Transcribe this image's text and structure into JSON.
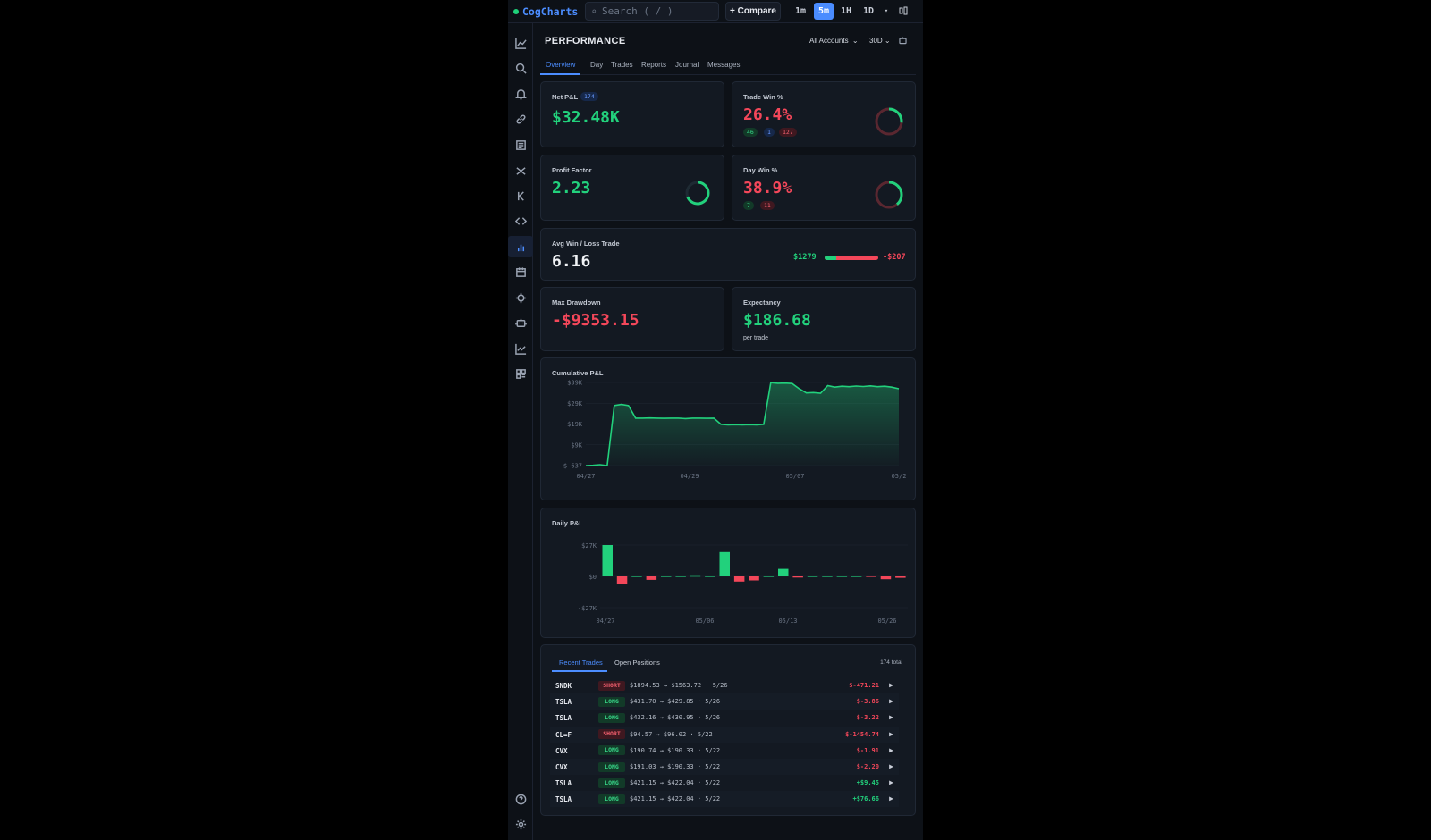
{
  "app": {
    "brand": "CogCharts"
  },
  "topbar": {
    "search_placeholder": "Search ( / )",
    "compare_label": "+ Compare",
    "timeframes": [
      "1m",
      "5m",
      "1H",
      "1D"
    ],
    "active_timeframe": "5m",
    "more": "▾"
  },
  "sidebar": {
    "items": [
      "chart-icon",
      "search-icon",
      "bell-icon",
      "link-icon",
      "news-icon",
      "scissors-icon",
      "k-icon",
      "code-icon",
      "bar-chart-icon",
      "calendar-icon",
      "target-icon",
      "robot-icon",
      "line-chart-icon",
      "grid-icon"
    ],
    "active": "bar-chart-icon",
    "bottom": [
      "help-icon",
      "settings-icon"
    ]
  },
  "page": {
    "title": "PERFORMANCE",
    "account_select": "All Accounts",
    "range_select": "30D",
    "tabs": [
      "Overview",
      "Day",
      "Trades",
      "Reports",
      "Journal",
      "Messages"
    ],
    "active_tab": "Overview"
  },
  "metrics": {
    "net_pnl": {
      "label": "Net P&L",
      "badge": "174",
      "value": "$32.48K"
    },
    "trade_win": {
      "label": "Trade Win %",
      "value": "26.4%",
      "wins": "46",
      "even": "1",
      "losses": "127",
      "fraction": 0.264
    },
    "profit_factor": {
      "label": "Profit Factor",
      "value": "2.23",
      "fraction": 0.69
    },
    "day_win": {
      "label": "Day Win %",
      "value": "38.9%",
      "wins": "7",
      "losses": "11",
      "fraction": 0.389
    },
    "avg_win_loss": {
      "label": "Avg Win / Loss Trade",
      "value": "6.16",
      "avg_win": "$1279",
      "avg_loss": "-$207",
      "win_fraction": 0.22
    },
    "max_drawdown": {
      "label": "Max Drawdown",
      "value": "-$9353.15"
    },
    "expectancy": {
      "label": "Expectancy",
      "value": "$186.68",
      "sub": "per trade"
    }
  },
  "colors": {
    "green": "#22d17c",
    "red": "#f4475a",
    "accent": "#4a8cff"
  },
  "chart_data": [
    {
      "type": "area",
      "title": "Cumulative P&L",
      "x_ticks": [
        "04/27",
        "04/29",
        "05/07",
        "05/2"
      ],
      "y_ticks": [
        "$39K",
        "$29K",
        "$19K",
        "$9K",
        "$-637"
      ],
      "ylim": [
        -637,
        39000
      ],
      "series": [
        {
          "values": [
            -637,
            -500,
            -200,
            -637,
            28000,
            28500,
            28000,
            22000,
            22000,
            22100,
            22000,
            21900,
            22000,
            22000,
            21800,
            22000,
            22000,
            21900,
            22000,
            19000,
            18800,
            18900,
            18800,
            18900,
            18800,
            19000,
            38900,
            38600,
            38700,
            38500,
            36000,
            34000,
            34200,
            33900,
            37500,
            36800,
            37200,
            37000,
            37300,
            37100,
            37400,
            37000,
            37200,
            36800,
            36000
          ]
        }
      ]
    },
    {
      "type": "bar",
      "title": "Daily P&L",
      "x_ticks": [
        "04/27",
        "05/06",
        "05/13",
        "05/26"
      ],
      "y_ticks": [
        "$27K",
        "$0",
        "-$27K"
      ],
      "ylim": [
        -27000,
        27000
      ],
      "values": [
        27000,
        -6500,
        0,
        -3000,
        0,
        0,
        200,
        0,
        21000,
        -4500,
        -3500,
        0,
        6500,
        -1000,
        0,
        0,
        0,
        0,
        -300,
        -2500,
        -1200
      ]
    }
  ],
  "trades": {
    "tabs": [
      "Recent Trades",
      "Open Positions"
    ],
    "active_tab": "Recent Trades",
    "total": "174 total",
    "rows": [
      {
        "sym": "SNDK",
        "side": "SHORT",
        "desc": "$1894.53 → $1563.72 · 5/26",
        "pnl": "$-471.21",
        "pos": false
      },
      {
        "sym": "TSLA",
        "side": "LONG",
        "desc": "$431.70 → $429.85 · 5/26",
        "pnl": "$-3.86",
        "pos": false
      },
      {
        "sym": "TSLA",
        "side": "LONG",
        "desc": "$432.16 → $430.95 · 5/26",
        "pnl": "$-3.22",
        "pos": false
      },
      {
        "sym": "CL=F",
        "side": "SHORT",
        "desc": "$94.57 → $96.02 · 5/22",
        "pnl": "$-1454.74",
        "pos": false
      },
      {
        "sym": "CVX",
        "side": "LONG",
        "desc": "$190.74 → $190.33 · 5/22",
        "pnl": "$-1.91",
        "pos": false
      },
      {
        "sym": "CVX",
        "side": "LONG",
        "desc": "$191.03 → $190.33 · 5/22",
        "pnl": "$-2.20",
        "pos": false
      },
      {
        "sym": "TSLA",
        "side": "LONG",
        "desc": "$421.15 → $422.04 · 5/22",
        "pnl": "+$9.45",
        "pos": true
      },
      {
        "sym": "TSLA",
        "side": "LONG",
        "desc": "$421.15 → $422.04 · 5/22",
        "pnl": "+$76.66",
        "pos": true
      }
    ]
  }
}
